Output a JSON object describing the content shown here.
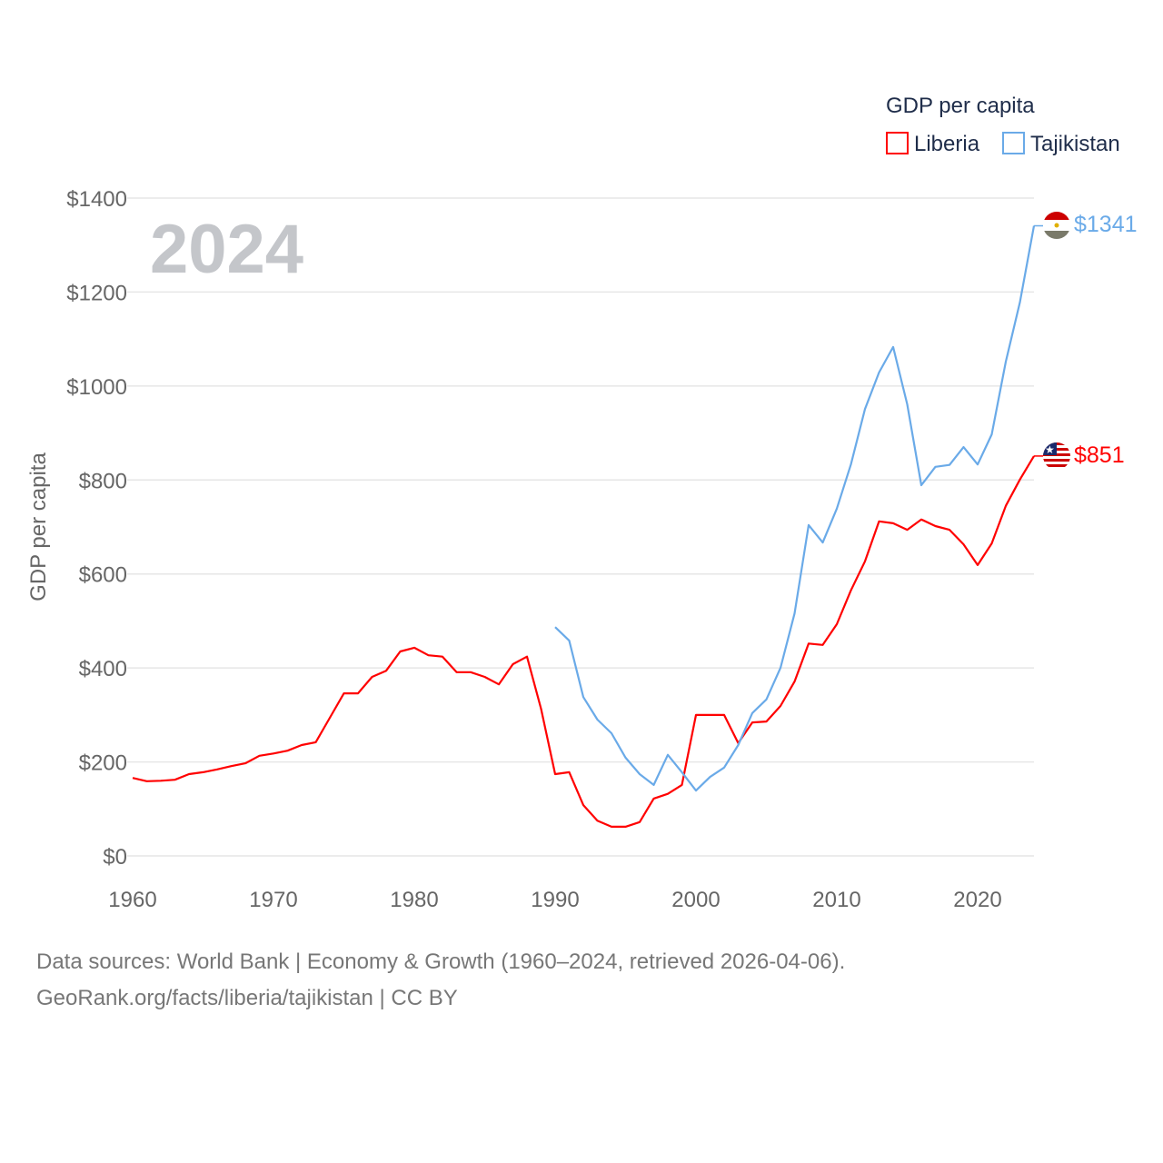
{
  "colors": {
    "liberia": "#ff0000",
    "tajikistan": "#6aaae8",
    "grid": "#e6e6e6",
    "watermark": "#c4c6ca"
  },
  "chart_data": {
    "type": "line",
    "title": "GDP per capita",
    "ylabel": "GDP per capita",
    "xlabel": "",
    "year_label": "2024",
    "xlim": [
      1960,
      2024
    ],
    "ylim": [
      0,
      1400
    ],
    "x_ticks": [
      1960,
      1970,
      1980,
      1990,
      2000,
      2010,
      2020
    ],
    "x_tick_labels": [
      "1960",
      "1970",
      "1980",
      "1990",
      "2000",
      "2010",
      "2020"
    ],
    "y_ticks": [
      0,
      200,
      400,
      600,
      800,
      1000,
      1200,
      1400
    ],
    "y_tick_labels": [
      "$0",
      "$200",
      "$400",
      "$600",
      "$800",
      "$1000",
      "$1200",
      "$1400"
    ],
    "grid": true,
    "legend_position": "top-right",
    "series": [
      {
        "name": "Liberia",
        "color_key": "liberia",
        "end_label": "$851",
        "x_start": 1960,
        "values": [
          166,
          159,
          160,
          162,
          174,
          178,
          184,
          191,
          197,
          213,
          218,
          224,
          236,
          242,
          294,
          346,
          346,
          381,
          394,
          435,
          443,
          427,
          424,
          391,
          391,
          381,
          365,
          408,
          424,
          313,
          174,
          178,
          108,
          75,
          62,
          62,
          72,
          122,
          132,
          151,
          300,
          300,
          300,
          240,
          284,
          286,
          319,
          371,
          452,
          449,
          493,
          565,
          627,
          712,
          708,
          694,
          716,
          702,
          694,
          663,
          619,
          665,
          745,
          801,
          851
        ]
      },
      {
        "name": "Tajikistan",
        "color_key": "tajikistan",
        "end_label": "$1341",
        "x_start": 1990,
        "values": [
          487,
          458,
          338,
          290,
          261,
          209,
          174,
          151,
          215,
          178,
          139,
          168,
          188,
          236,
          304,
          333,
          400,
          516,
          704,
          667,
          739,
          833,
          951,
          1029,
          1083,
          961,
          789,
          828,
          832,
          870,
          833,
          897,
          1052,
          1178,
          1341
        ]
      }
    ]
  },
  "footer": {
    "line1": "Data sources: World Bank | Economy & Growth (1960–2024, retrieved 2026-04-06).",
    "line2": "GeoRank.org/facts/liberia/tajikistan | CC BY"
  }
}
